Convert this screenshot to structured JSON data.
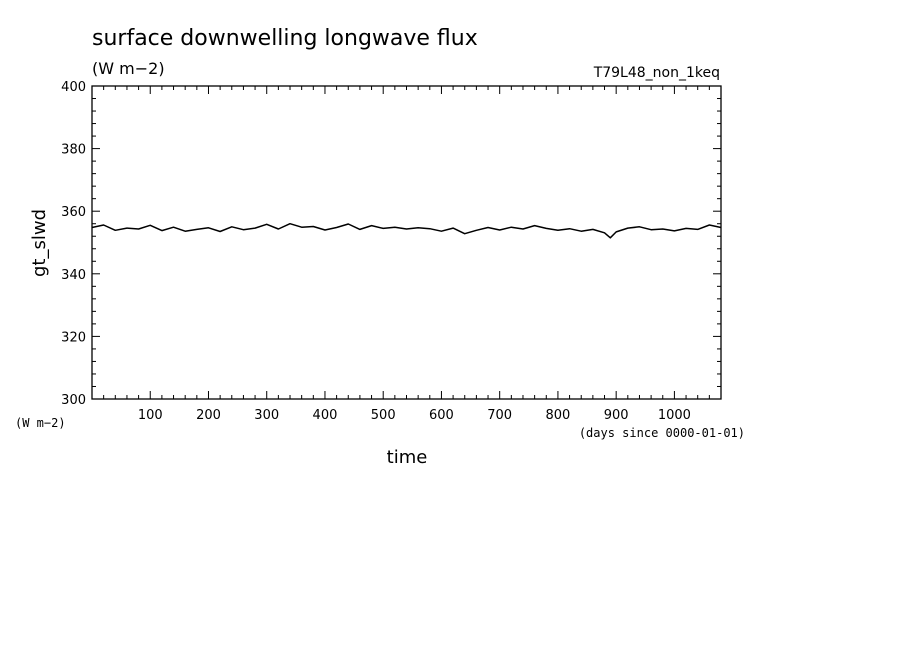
{
  "chart_data": {
    "type": "line",
    "title": "surface downwelling longwave flux",
    "subtitle": "(W m−2)",
    "run_label": "T79L48_non_1keq",
    "xlabel": "time",
    "xunits": "(days since 0000-01-01)",
    "ylabel": "gt_slwd",
    "yunits": "(W m−2)",
    "xlim": [
      0,
      1080
    ],
    "ylim": [
      300,
      400
    ],
    "xticks": [
      "100",
      "200",
      "300",
      "400",
      "500",
      "600",
      "700",
      "800",
      "900",
      "1000"
    ],
    "yticks": [
      "300",
      "320",
      "340",
      "360",
      "380",
      "400"
    ],
    "grid": false,
    "series": [
      {
        "x": [
          0,
          20,
          40,
          60,
          80,
          100,
          120,
          140,
          160,
          180,
          200,
          220,
          240,
          260,
          280,
          300,
          320,
          340,
          360,
          380,
          400,
          420,
          440,
          460,
          480,
          500,
          520,
          540,
          560,
          580,
          600,
          620,
          640,
          660,
          680,
          700,
          720,
          740,
          760,
          780,
          800,
          820,
          840,
          860,
          880,
          890,
          900,
          920,
          940,
          960,
          980,
          1000,
          1020,
          1040,
          1060,
          1080
        ],
        "y": [
          354.8,
          355.6,
          353.9,
          354.6,
          354.3,
          355.5,
          353.8,
          354.9,
          353.6,
          354.2,
          354.7,
          353.5,
          355.0,
          354.1,
          354.6,
          355.8,
          354.3,
          356.0,
          354.9,
          355.1,
          354.0,
          354.8,
          355.9,
          354.2,
          355.4,
          354.5,
          354.9,
          354.3,
          354.7,
          354.4,
          353.6,
          354.6,
          352.8,
          353.9,
          354.8,
          354.0,
          354.9,
          354.3,
          355.4,
          354.5,
          353.9,
          354.4,
          353.6,
          354.2,
          353.1,
          351.5,
          353.4,
          354.6,
          355.0,
          354.1,
          354.3,
          353.7,
          354.5,
          354.2,
          355.6,
          354.8
        ]
      }
    ]
  }
}
